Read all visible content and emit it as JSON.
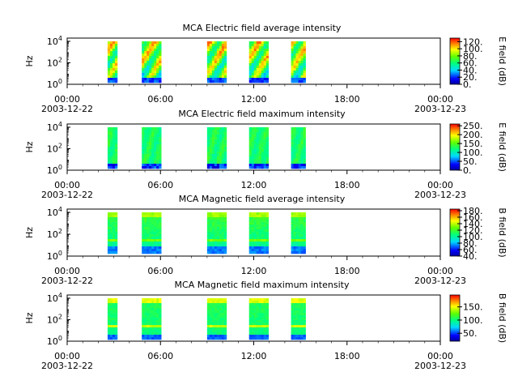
{
  "chart_data": [
    {
      "type": "heatmap",
      "title": "MCA  Electric field average intensity",
      "ylabel": "Hz",
      "y_ticks": [
        "10^0",
        "10^2",
        "10^4"
      ],
      "x_ticks": [
        "00:00",
        "06:00",
        "12:00",
        "18:00",
        "00:00"
      ],
      "x_dates": [
        "2003-12-22",
        "2003-12-23"
      ],
      "xlim": [
        "2003-12-22T00:00",
        "2003-12-23T00:00"
      ],
      "ylim_log10": [
        0,
        4.3
      ],
      "colorbar_label": "E field (dB)",
      "colorbar_ticks": [
        "0.",
        "20.",
        "40.",
        "60.",
        "80.",
        "100.",
        "120."
      ],
      "colorbar_range": [
        0,
        130
      ],
      "style": "avgE",
      "time_blocks": [
        [
          2.6,
          3.1
        ],
        [
          4.8,
          6.0
        ],
        [
          9.0,
          10.2
        ],
        [
          11.7,
          12.8
        ],
        [
          14.4,
          15.2
        ]
      ]
    },
    {
      "type": "heatmap",
      "title": "MCA  Electric field maximum intensity",
      "ylabel": "Hz",
      "y_ticks": [
        "10^0",
        "10^2",
        "10^4"
      ],
      "x_ticks": [
        "00:00",
        "06:00",
        "12:00",
        "18:00",
        "00:00"
      ],
      "x_dates": [
        "2003-12-22",
        "2003-12-23"
      ],
      "xlim": [
        "2003-12-22T00:00",
        "2003-12-23T00:00"
      ],
      "ylim_log10": [
        0,
        4.3
      ],
      "colorbar_label": "E field (dB)",
      "colorbar_ticks": [
        "0.",
        "50.",
        "100.",
        "150.",
        "200.",
        "250."
      ],
      "colorbar_range": [
        0,
        260
      ],
      "style": "maxE",
      "time_blocks": [
        [
          2.6,
          3.1
        ],
        [
          4.8,
          6.0
        ],
        [
          9.0,
          10.2
        ],
        [
          11.7,
          12.8
        ],
        [
          14.4,
          15.2
        ]
      ]
    },
    {
      "type": "heatmap",
      "title": "MCA  Magnetic field average intensity",
      "ylabel": "Hz",
      "y_ticks": [
        "10^0",
        "10^2",
        "10^4"
      ],
      "x_ticks": [
        "00:00",
        "06:00",
        "12:00",
        "18:00",
        "00:00"
      ],
      "x_dates": [
        "2003-12-22",
        "2003-12-23"
      ],
      "xlim": [
        "2003-12-22T00:00",
        "2003-12-23T00:00"
      ],
      "ylim_log10": [
        0,
        4.3
      ],
      "colorbar_label": "B field (dB)",
      "colorbar_ticks": [
        "40.",
        "60.",
        "80.",
        "100.",
        "120.",
        "140.",
        "160.",
        "180."
      ],
      "colorbar_range": [
        40,
        185
      ],
      "style": "avgB",
      "time_blocks": [
        [
          2.6,
          3.1
        ],
        [
          4.8,
          6.0
        ],
        [
          9.0,
          10.2
        ],
        [
          11.7,
          12.8
        ],
        [
          14.4,
          15.2
        ]
      ]
    },
    {
      "type": "heatmap",
      "title": "MCA  Magnetic field maximum intensity",
      "ylabel": "Hz",
      "y_ticks": [
        "10^0",
        "10^2",
        "10^4"
      ],
      "x_ticks": [
        "00:00",
        "06:00",
        "12:00",
        "18:00",
        "00:00"
      ],
      "x_dates": [
        "2003-12-22",
        "2003-12-23"
      ],
      "xlim": [
        "2003-12-22T00:00",
        "2003-12-23T00:00"
      ],
      "ylim_log10": [
        0,
        4.3
      ],
      "colorbar_label": "B field (dB)",
      "colorbar_ticks": [
        "50.",
        "100.",
        "150."
      ],
      "colorbar_range": [
        20,
        195
      ],
      "style": "maxB",
      "time_blocks": [
        [
          2.6,
          3.1
        ],
        [
          4.8,
          6.0
        ],
        [
          9.0,
          10.2
        ],
        [
          11.7,
          12.8
        ],
        [
          14.4,
          15.2
        ]
      ]
    }
  ]
}
